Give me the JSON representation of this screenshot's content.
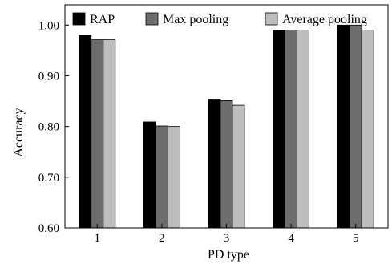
{
  "chart_data": {
    "type": "bar",
    "xlabel": "PD type",
    "ylabel": "Accuracy",
    "categories": [
      "1",
      "2",
      "3",
      "4",
      "5"
    ],
    "ylim": [
      0.6,
      1.04
    ],
    "yticks": [
      "0.60",
      "0.70",
      "0.80",
      "0.90",
      "1.00"
    ],
    "grid": false,
    "legend_position": "top",
    "series": [
      {
        "name": "RAP",
        "color": "#000000",
        "values": [
          0.98,
          0.809,
          0.854,
          0.99,
          1.0
        ]
      },
      {
        "name": "Max pooling",
        "color": "#6d6d6d",
        "values": [
          0.971,
          0.801,
          0.851,
          0.99,
          1.0
        ]
      },
      {
        "name": "Average pooling",
        "color": "#bdbdbd",
        "values": [
          0.971,
          0.8,
          0.842,
          0.99,
          0.99
        ]
      }
    ]
  }
}
